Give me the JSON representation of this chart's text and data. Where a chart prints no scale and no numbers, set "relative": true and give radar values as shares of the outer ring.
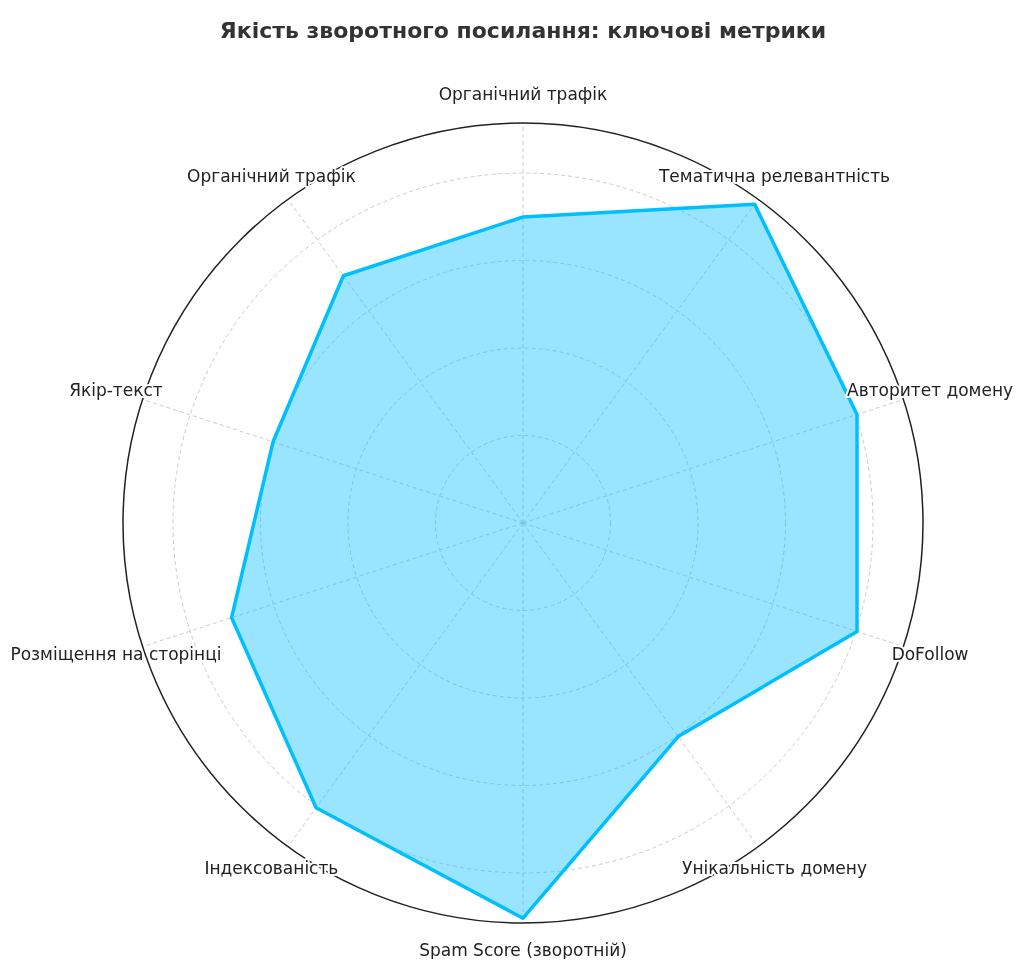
{
  "chart_data": {
    "type": "radar",
    "title": "Якість зворотного посилання: ключові метрики",
    "categories": [
      "Органічний трафік",
      "Тематична релевантність",
      "Авторитет домену",
      "DoFollow",
      "Унікальність домену",
      "Spam Score (зворотній)",
      "Індексованість",
      "Розміщення на сторінці",
      "Якір-текст",
      "Органічний трафік"
    ],
    "series": [
      {
        "color": "#00bfff",
        "values": [
          0.765,
          0.985,
          0.878,
          0.878,
          0.66,
          0.988,
          0.88,
          0.766,
          0.657,
          0.764
        ]
      }
    ],
    "relative": true,
    "grid": true
  }
}
